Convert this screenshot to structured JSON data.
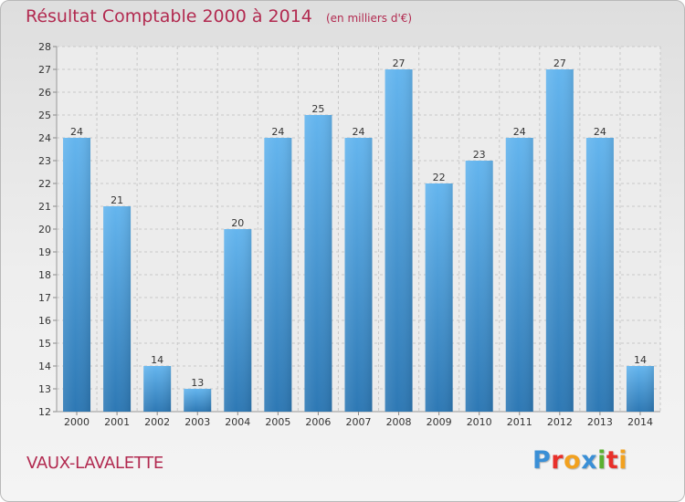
{
  "header": {
    "title": "Résultat Comptable 2000 à 2014",
    "subtitle": "(en milliers d'€)"
  },
  "commune": "VAUX-LAVALETTE",
  "logo": {
    "text": "Proxiti",
    "letters": [
      {
        "char": "P",
        "color": "#3a8fd6"
      },
      {
        "char": "r",
        "color": "#e8302a"
      },
      {
        "char": "o",
        "color": "#f2a11f"
      },
      {
        "char": "x",
        "color": "#3a8fd6"
      },
      {
        "char": "i",
        "color": "#5bb030"
      },
      {
        "char": "t",
        "color": "#e8302a"
      },
      {
        "char": "i",
        "color": "#f2a11f"
      }
    ]
  },
  "colors": {
    "title": "#b22a50",
    "bar_top": "#64b5ee",
    "bar_bottom": "#2d78b4",
    "grid": "#c8c8c8",
    "axis_text": "#333333"
  },
  "chart_data": {
    "type": "bar",
    "title": "Résultat Comptable 2000 à 2014",
    "subtitle": "(en milliers d'€)",
    "categories": [
      "2000",
      "2001",
      "2002",
      "2003",
      "2004",
      "2005",
      "2006",
      "2007",
      "2008",
      "2009",
      "2010",
      "2011",
      "2012",
      "2013",
      "2014"
    ],
    "values": [
      24,
      21,
      14,
      13,
      20,
      24,
      25,
      24,
      27,
      22,
      23,
      24,
      27,
      24,
      14
    ],
    "ylim": [
      12,
      28
    ],
    "yticks": [
      12,
      13,
      14,
      15,
      16,
      17,
      18,
      19,
      20,
      21,
      22,
      23,
      24,
      25,
      26,
      27,
      28
    ],
    "grid": true,
    "data_labels": true,
    "legend": "none"
  }
}
